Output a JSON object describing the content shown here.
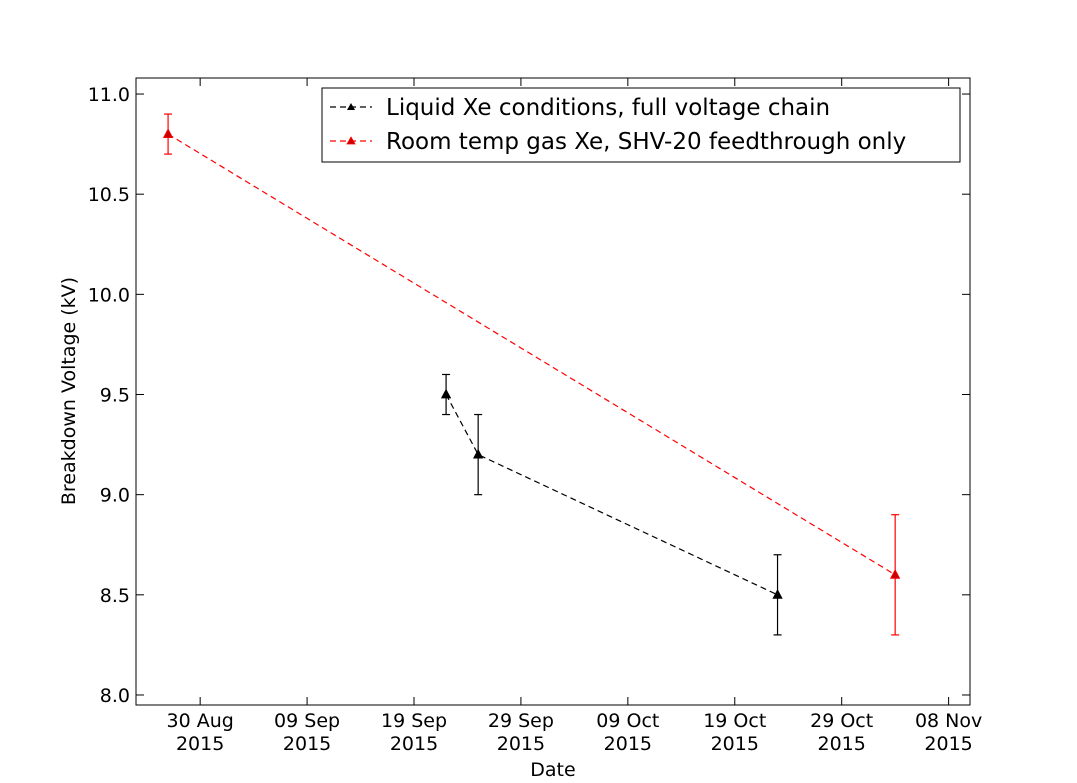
{
  "chart_data": {
    "type": "line",
    "xlabel": "Date",
    "ylabel": "Breakdown Voltage (kV)",
    "xlim": [
      "2015-08-24",
      "2015-11-10"
    ],
    "ylim": [
      7.95,
      11.08
    ],
    "yticks": [
      8.0,
      8.5,
      9.0,
      9.5,
      10.0,
      10.5,
      11.0
    ],
    "ytick_labels": [
      "8.0",
      "8.5",
      "9.0",
      "9.5",
      "10.0",
      "10.5",
      "11.0"
    ],
    "xticks": [
      {
        "date": "2015-08-30",
        "line1": "30 Aug",
        "line2": "2015"
      },
      {
        "date": "2015-09-09",
        "line1": "09 Sep",
        "line2": "2015"
      },
      {
        "date": "2015-09-19",
        "line1": "19 Sep",
        "line2": "2015"
      },
      {
        "date": "2015-09-29",
        "line1": "29 Sep",
        "line2": "2015"
      },
      {
        "date": "2015-10-09",
        "line1": "09 Oct",
        "line2": "2015"
      },
      {
        "date": "2015-10-19",
        "line1": "19 Oct",
        "line2": "2015"
      },
      {
        "date": "2015-10-29",
        "line1": "29 Oct",
        "line2": "2015"
      },
      {
        "date": "2015-11-08",
        "line1": "08 Nov",
        "line2": "2015"
      }
    ],
    "legend_position": "top-right",
    "grid": false,
    "series": [
      {
        "name": "Liquid Xe conditions, full voltage chain",
        "color": "#000000",
        "marker": "triangle",
        "line_style": "dashed",
        "points": [
          {
            "x": "2015-09-22",
            "y": 9.5,
            "err": 0.1
          },
          {
            "x": "2015-09-25",
            "y": 9.2,
            "err": 0.2
          },
          {
            "x": "2015-10-23",
            "y": 8.5,
            "err": 0.2
          }
        ]
      },
      {
        "name": "Room temp gas Xe, SHV-20 feedthrough only",
        "color": "#ff0000",
        "marker": "triangle",
        "line_style": "dashed",
        "points": [
          {
            "x": "2015-08-27",
            "y": 10.8,
            "err": 0.1
          },
          {
            "x": "2015-11-03",
            "y": 8.6,
            "err": 0.3
          }
        ]
      }
    ]
  }
}
